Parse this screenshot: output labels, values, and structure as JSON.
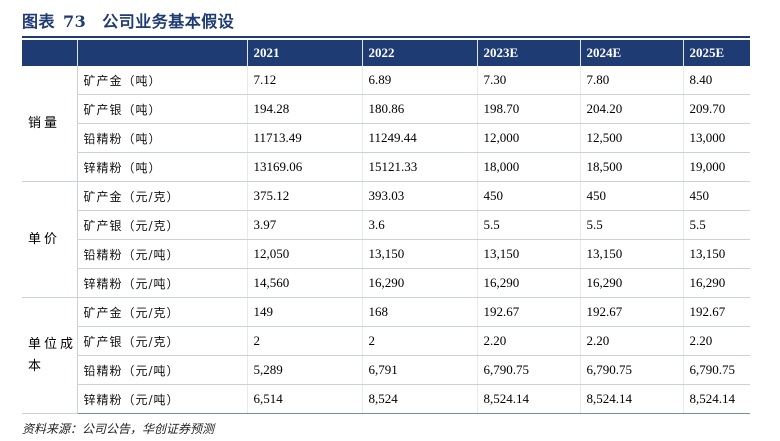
{
  "title": {
    "label": "图表",
    "number": "73",
    "text": "公司业务基本假设"
  },
  "table": {
    "header": [
      "2021",
      "2022",
      "2023E",
      "2024E",
      "2025E"
    ],
    "groups": [
      {
        "name": "销量",
        "rows": [
          {
            "item": "矿产金（吨）",
            "values": [
              "7.12",
              "6.89",
              "7.30",
              "7.80",
              "8.40"
            ]
          },
          {
            "item": "矿产银（吨）",
            "values": [
              "194.28",
              "180.86",
              "198.70",
              "204.20",
              "209.70"
            ]
          },
          {
            "item": "铅精粉（吨）",
            "values": [
              "11713.49",
              "11249.44",
              "12,000",
              "12,500",
              "13,000"
            ]
          },
          {
            "item": "锌精粉（吨）",
            "values": [
              "13169.06",
              "15121.33",
              "18,000",
              "18,500",
              "19,000"
            ]
          }
        ]
      },
      {
        "name": "单价",
        "rows": [
          {
            "item": "矿产金（元/克）",
            "values": [
              "375.12",
              "393.03",
              "450",
              "450",
              "450"
            ]
          },
          {
            "item": "矿产银（元/克）",
            "values": [
              "3.97",
              "3.6",
              "5.5",
              "5.5",
              "5.5"
            ]
          },
          {
            "item": "铅精粉（元/吨）",
            "values": [
              "12,050",
              "13,150",
              "13,150",
              "13,150",
              "13,150"
            ]
          },
          {
            "item": "锌精粉（元/吨）",
            "values": [
              "14,560",
              "16,290",
              "16,290",
              "16,290",
              "16,290"
            ]
          }
        ]
      },
      {
        "name": "单位成本",
        "rows": [
          {
            "item": "矿产金（元/克）",
            "values": [
              "149",
              "168",
              "192.67",
              "192.67",
              "192.67"
            ]
          },
          {
            "item": "矿产银（元/克）",
            "values": [
              "2",
              "2",
              "2.20",
              "2.20",
              "2.20"
            ]
          },
          {
            "item": "铅精粉（元/吨）",
            "values": [
              "5,289",
              "6,791",
              "6,790.75",
              "6,790.75",
              "6,790.75"
            ]
          },
          {
            "item": "锌精粉（元/吨）",
            "values": [
              "6,514",
              "8,524",
              "8,524.14",
              "8,524.14",
              "8,524.14"
            ]
          }
        ]
      }
    ]
  },
  "source": "资料来源：公司公告，华创证券预测",
  "colors": {
    "accent": "#1f3b73"
  }
}
